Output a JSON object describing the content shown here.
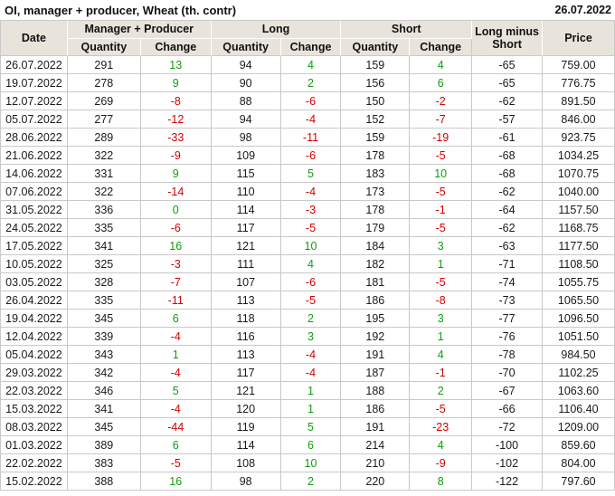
{
  "title": "OI, manager + producer, Wheat (th. contr)",
  "report_date": "26.07.2022",
  "colors": {
    "positive_change": "#0E9E0E",
    "negative_change": "#D40000",
    "header_background": "#E8E4DC",
    "grid_line": "#C9C9C9"
  },
  "table": {
    "headers": {
      "date": "Date",
      "manager_producer": "Manager + Producer",
      "long": "Long",
      "short": "Short",
      "quantity": "Quantity",
      "change": "Change",
      "long_minus_short": "Long minus Short",
      "price": "Price"
    },
    "columns": [
      "Date",
      "Manager + Producer Quantity",
      "Manager + Producer Change",
      "Long Quantity",
      "Long Change",
      "Short Quantity",
      "Short Change",
      "Long minus Short",
      "Price"
    ],
    "rows": [
      [
        "26.07.2022",
        "291",
        "13",
        "94",
        "4",
        "159",
        "4",
        "-65",
        "759.00"
      ],
      [
        "19.07.2022",
        "278",
        "9",
        "90",
        "2",
        "156",
        "6",
        "-65",
        "776.75"
      ],
      [
        "12.07.2022",
        "269",
        "-8",
        "88",
        "-6",
        "150",
        "-2",
        "-62",
        "891.50"
      ],
      [
        "05.07.2022",
        "277",
        "-12",
        "94",
        "-4",
        "152",
        "-7",
        "-57",
        "846.00"
      ],
      [
        "28.06.2022",
        "289",
        "-33",
        "98",
        "-11",
        "159",
        "-19",
        "-61",
        "923.75"
      ],
      [
        "21.06.2022",
        "322",
        "-9",
        "109",
        "-6",
        "178",
        "-5",
        "-68",
        "1034.25"
      ],
      [
        "14.06.2022",
        "331",
        "9",
        "115",
        "5",
        "183",
        "10",
        "-68",
        "1070.75"
      ],
      [
        "07.06.2022",
        "322",
        "-14",
        "110",
        "-4",
        "173",
        "-5",
        "-62",
        "1040.00"
      ],
      [
        "31.05.2022",
        "336",
        "0",
        "114",
        "-3",
        "178",
        "-1",
        "-64",
        "1157.50"
      ],
      [
        "24.05.2022",
        "335",
        "-6",
        "117",
        "-5",
        "179",
        "-5",
        "-62",
        "1168.75"
      ],
      [
        "17.05.2022",
        "341",
        "16",
        "121",
        "10",
        "184",
        "3",
        "-63",
        "1177.50"
      ],
      [
        "10.05.2022",
        "325",
        "-3",
        "111",
        "4",
        "182",
        "1",
        "-71",
        "1108.50"
      ],
      [
        "03.05.2022",
        "328",
        "-7",
        "107",
        "-6",
        "181",
        "-5",
        "-74",
        "1055.75"
      ],
      [
        "26.04.2022",
        "335",
        "-11",
        "113",
        "-5",
        "186",
        "-8",
        "-73",
        "1065.50"
      ],
      [
        "19.04.2022",
        "345",
        "6",
        "118",
        "2",
        "195",
        "3",
        "-77",
        "1096.50"
      ],
      [
        "12.04.2022",
        "339",
        "-4",
        "116",
        "3",
        "192",
        "1",
        "-76",
        "1051.50"
      ],
      [
        "05.04.2022",
        "343",
        "1",
        "113",
        "-4",
        "191",
        "4",
        "-78",
        "984.50"
      ],
      [
        "29.03.2022",
        "342",
        "-4",
        "117",
        "-4",
        "187",
        "-1",
        "-70",
        "1102.25"
      ],
      [
        "22.03.2022",
        "346",
        "5",
        "121",
        "1",
        "188",
        "2",
        "-67",
        "1063.60"
      ],
      [
        "15.03.2022",
        "341",
        "-4",
        "120",
        "1",
        "186",
        "-5",
        "-66",
        "1106.40"
      ],
      [
        "08.03.2022",
        "345",
        "-44",
        "119",
        "5",
        "191",
        "-23",
        "-72",
        "1209.00"
      ],
      [
        "01.03.2022",
        "389",
        "6",
        "114",
        "6",
        "214",
        "4",
        "-100",
        "859.60"
      ],
      [
        "22.02.2022",
        "383",
        "-5",
        "108",
        "10",
        "210",
        "-9",
        "-102",
        "804.00"
      ],
      [
        "15.02.2022",
        "388",
        "16",
        "98",
        "2",
        "220",
        "8",
        "-122",
        "797.60"
      ]
    ]
  }
}
